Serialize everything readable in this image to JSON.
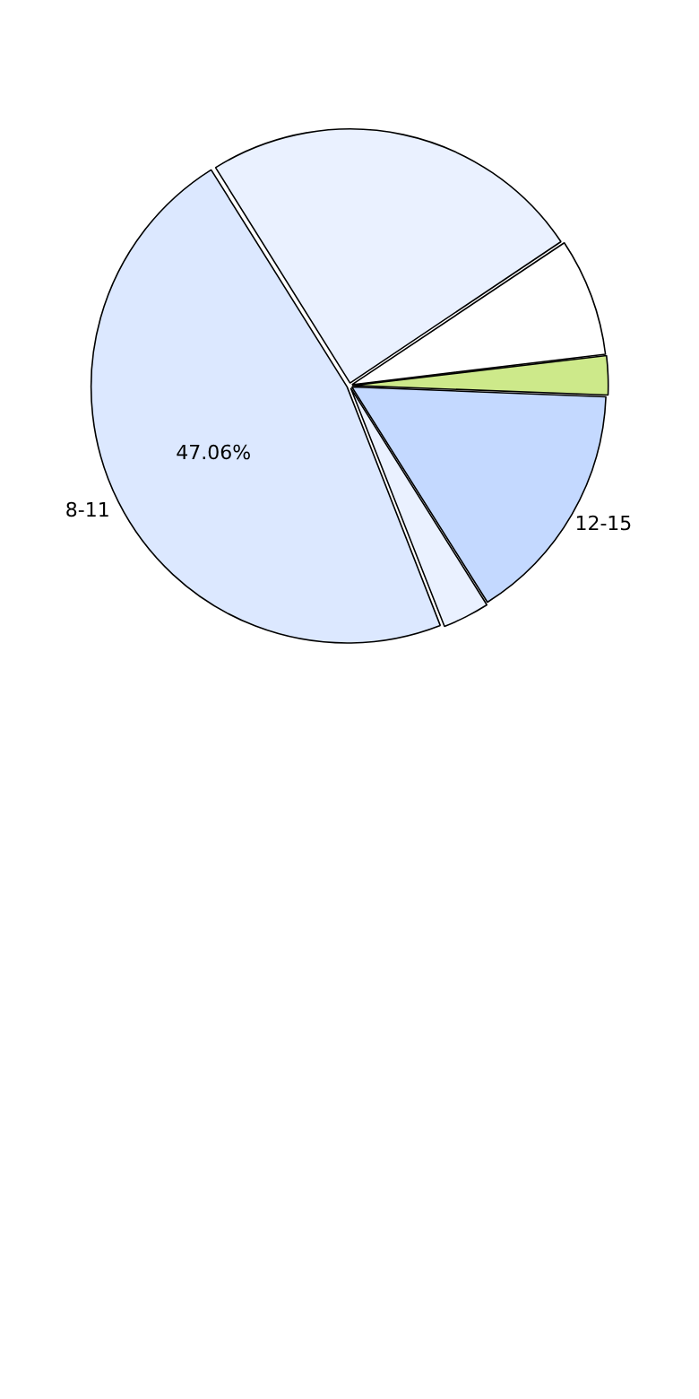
{
  "chart_data": {
    "type": "pie",
    "categories": [
      null,
      null,
      null,
      "12-15",
      null,
      "8-11"
    ],
    "values": [
      24.5,
      7.5,
      2.5,
      15.44,
      3,
      47.06
    ],
    "colors": [
      "#eaf1ff",
      "#ffffff",
      "#cde98a",
      "#c4d9ff",
      "#eaf1ff",
      "#dce8ff"
    ],
    "value_labels": [
      null,
      null,
      null,
      null,
      null,
      "47.06%"
    ],
    "legend": false
  }
}
